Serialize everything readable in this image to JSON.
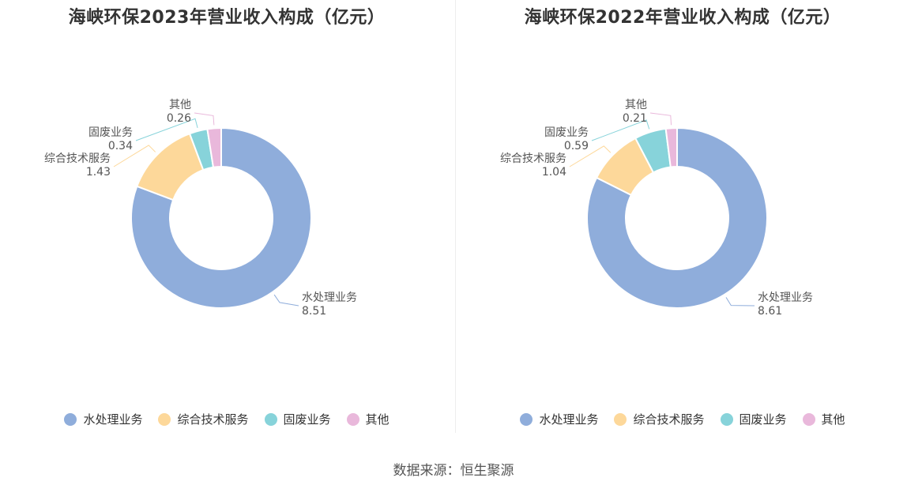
{
  "chart_data": [
    {
      "type": "pie",
      "title": "海峡环保2023年营业收入构成（亿元）",
      "categories": [
        "水处理业务",
        "综合技术服务",
        "固废业务",
        "其他"
      ],
      "values": [
        8.51,
        1.43,
        0.34,
        0.26
      ],
      "colors": [
        "#8FADDB",
        "#FDD89A",
        "#87D3DA",
        "#E9B8DB"
      ],
      "legend": "bottom"
    },
    {
      "type": "pie",
      "title": "海峡环保2022年营业收入构成（亿元）",
      "categories": [
        "水处理业务",
        "综合技术服务",
        "固废业务",
        "其他"
      ],
      "values": [
        8.61,
        1.04,
        0.59,
        0.21
      ],
      "colors": [
        "#8FADDB",
        "#FDD89A",
        "#87D3DA",
        "#E9B8DB"
      ],
      "legend": "bottom"
    }
  ],
  "source": "数据来源：恒生聚源"
}
